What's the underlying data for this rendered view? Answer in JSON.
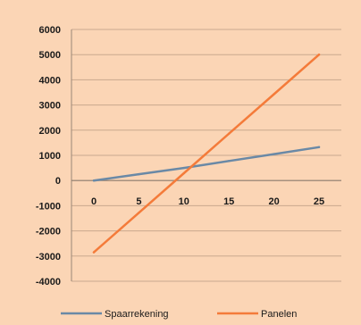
{
  "chart_data": {
    "type": "line",
    "x": [
      0,
      5,
      10,
      15,
      20,
      25
    ],
    "xticks": [
      "0",
      "5",
      "10",
      "15",
      "20",
      "25"
    ],
    "yticks": [
      "6000",
      "5000",
      "4000",
      "3000",
      "2000",
      "1000",
      "0",
      "-1000",
      "-2000",
      "-3000",
      "-4000"
    ],
    "ylim": [
      -4000,
      6000
    ],
    "xlim": [
      0,
      25
    ],
    "grid": true,
    "legend_position": "bottom",
    "series": [
      {
        "name": "Spaarrekening",
        "color": "#6a89a6",
        "values": [
          0,
          250,
          500,
          775,
          1050,
          1325
        ]
      },
      {
        "name": "Panelen",
        "color": "#f47b3a",
        "values": [
          -2850,
          -1280,
          290,
          1860,
          3430,
          5000
        ]
      }
    ]
  }
}
